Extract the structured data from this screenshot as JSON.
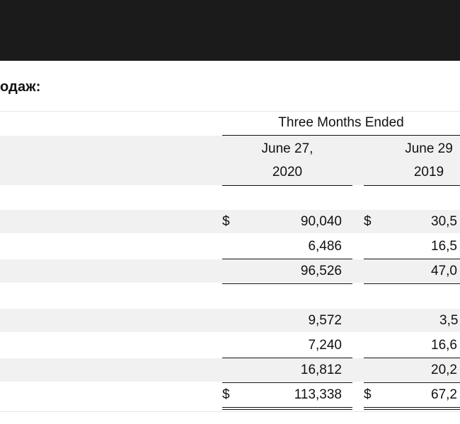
{
  "heading": "одаж:",
  "header": {
    "period": "Three Months Ended",
    "col1_line1": "June 27,",
    "col1_line2": "2020",
    "col2_line1": "June 29",
    "col2_line2": "2019"
  },
  "currency": "$",
  "rows": [
    {
      "col1": "90,040",
      "col2": "30,5"
    },
    {
      "col1": "6,486",
      "col2": "16,5"
    },
    {
      "col1": "96,526",
      "col2": "47,0"
    },
    {
      "col1": "9,572",
      "col2": "3,5"
    },
    {
      "col1": "7,240",
      "col2": "16,6"
    },
    {
      "col1": "16,812",
      "col2": "20,2"
    },
    {
      "col1": "113,338",
      "col2": "67,2"
    }
  ]
}
